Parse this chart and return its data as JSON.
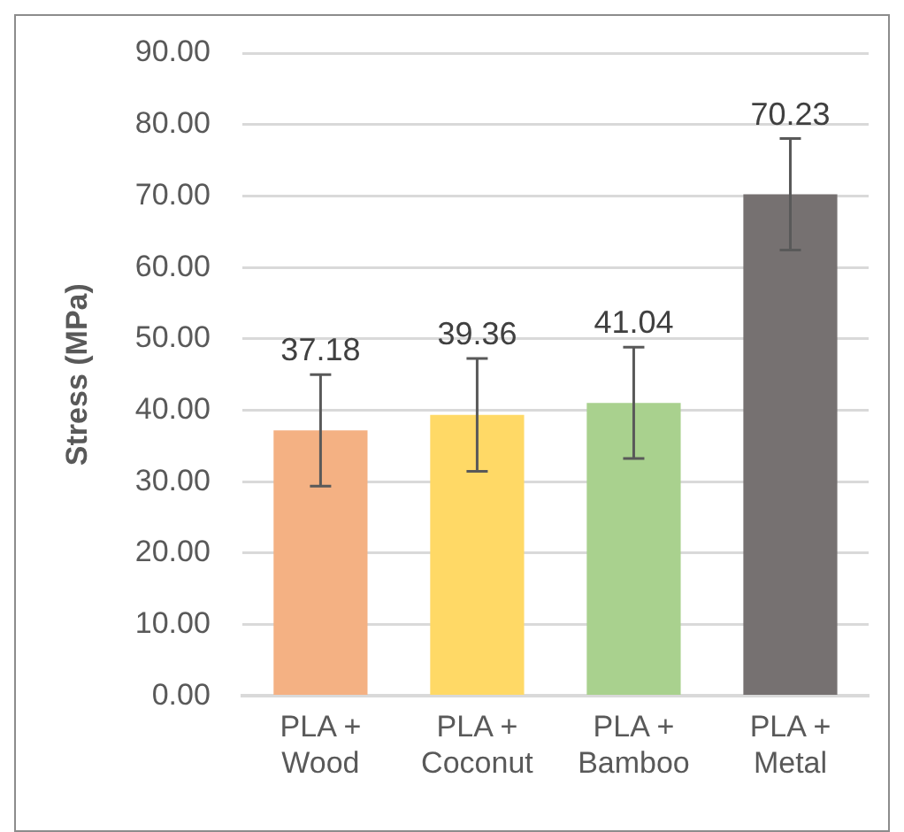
{
  "chart_data": {
    "type": "bar",
    "ylabel": "Stress (MPa)",
    "categories": [
      "PLA + Wood",
      "PLA + Coconut",
      "PLA + Bamboo",
      "PLA + Metal"
    ],
    "values": [
      37.18,
      39.36,
      41.04,
      70.23
    ],
    "colors": [
      "#f4b183",
      "#ffd966",
      "#a9d18e",
      "#767171"
    ],
    "errors": [
      7.8,
      7.9,
      7.8,
      7.8
    ],
    "ylim": [
      0,
      90
    ],
    "yticks": [
      {
        "value": 0,
        "label": "0.00"
      },
      {
        "value": 10,
        "label": "10.00"
      },
      {
        "value": 20,
        "label": "20.00"
      },
      {
        "value": 30,
        "label": "30.00"
      },
      {
        "value": 40,
        "label": "40.00"
      },
      {
        "value": 50,
        "label": "50.00"
      },
      {
        "value": 60,
        "label": "60.00"
      },
      {
        "value": 70,
        "label": "70.00"
      },
      {
        "value": 80,
        "label": "80.00"
      },
      {
        "value": 90,
        "label": "90.00"
      }
    ],
    "grid": "y",
    "data_labels": true,
    "legend": false
  }
}
